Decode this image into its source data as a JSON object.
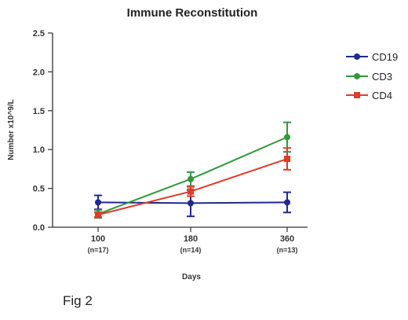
{
  "chart_data": {
    "type": "line",
    "title": "Immune Reconstitution",
    "xlabel": "Days",
    "ylabel": "Number x10^9/L",
    "categories": [
      "100",
      "180",
      "360"
    ],
    "category_sublabels": [
      "(n=17)",
      "(n=14)",
      "(n=13)"
    ],
    "ylim": [
      0,
      2.5
    ],
    "yticks": [
      "0.0",
      "0.5",
      "1.0",
      "1.5",
      "2.0",
      "2.5"
    ],
    "grid": false,
    "legend_position": "right",
    "series": [
      {
        "name": "CD19",
        "color": "#1f2a8c",
        "marker": "circle",
        "values": [
          0.32,
          0.31,
          0.32
        ],
        "err": [
          0.09,
          0.17,
          0.13
        ]
      },
      {
        "name": "CD3",
        "color": "#2e9a3a",
        "marker": "circle",
        "values": [
          0.17,
          0.62,
          1.16
        ],
        "err": [
          0.05,
          0.09,
          0.19
        ]
      },
      {
        "name": "CD4",
        "color": "#e03a2a",
        "marker": "square",
        "values": [
          0.16,
          0.46,
          0.88
        ],
        "err": [
          0.03,
          0.06,
          0.14
        ]
      }
    ]
  },
  "caption": "Fig 2"
}
